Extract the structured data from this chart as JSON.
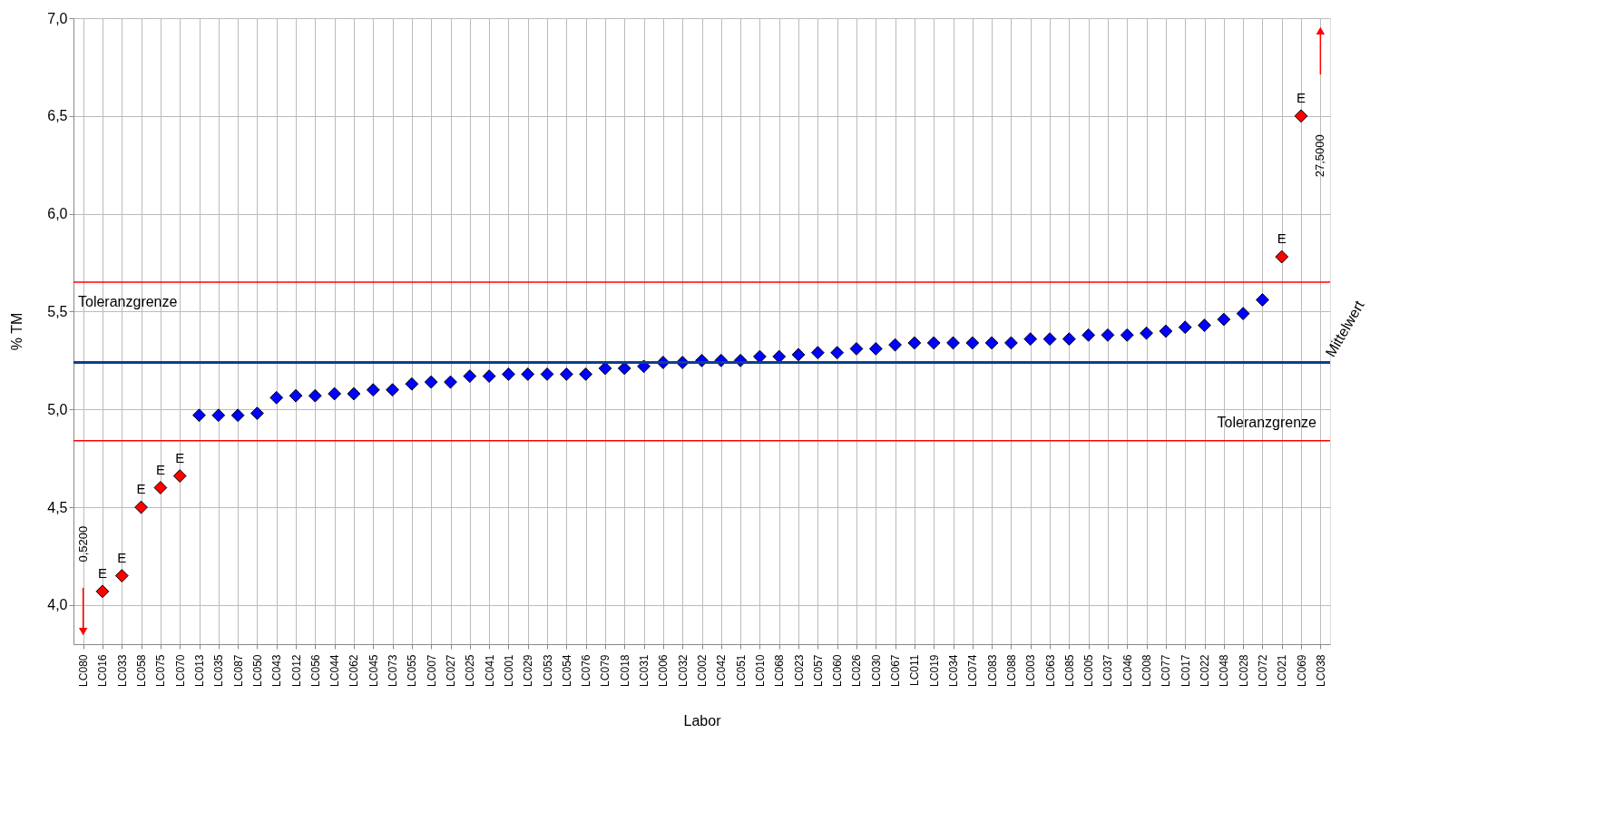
{
  "chart_data": {
    "type": "scatter",
    "xlabel": "Labor",
    "ylabel": "% TM",
    "categories": [
      "LC080",
      "LC016",
      "LC033",
      "LC058",
      "LC075",
      "LC070",
      "LC013",
      "LC035",
      "LC087",
      "LC050",
      "LC043",
      "LC012",
      "LC056",
      "LC044",
      "LC062",
      "LC045",
      "LC073",
      "LC055",
      "LC007",
      "LC027",
      "LC025",
      "LC041",
      "LC001",
      "LC029",
      "LC053",
      "LC054",
      "LC076",
      "LC079",
      "LC018",
      "LC031",
      "LC006",
      "LC032",
      "LC002",
      "LC042",
      "LC051",
      "LC010",
      "LC068",
      "LC023",
      "LC057",
      "LC060",
      "LC026",
      "LC030",
      "LC067",
      "LC011",
      "LC019",
      "LC034",
      "LC074",
      "LC083",
      "LC088",
      "LC003",
      "LC063",
      "LC085",
      "LC005",
      "LC037",
      "LC046",
      "LC008",
      "LC077",
      "LC017",
      "LC022",
      "LC048",
      "LC028",
      "LC072",
      "LC021",
      "LC069",
      "LC038"
    ],
    "values": [
      null,
      4.07,
      4.15,
      4.5,
      4.6,
      4.66,
      4.97,
      4.97,
      4.97,
      4.98,
      5.06,
      5.07,
      5.07,
      5.08,
      5.08,
      5.1,
      5.1,
      5.13,
      5.14,
      5.14,
      5.17,
      5.17,
      5.18,
      5.18,
      5.18,
      5.18,
      5.18,
      5.21,
      5.21,
      5.22,
      5.24,
      5.24,
      5.25,
      5.25,
      5.25,
      5.27,
      5.27,
      5.28,
      5.29,
      5.29,
      5.31,
      5.31,
      5.33,
      5.34,
      5.34,
      5.34,
      5.34,
      5.34,
      5.34,
      5.36,
      5.36,
      5.36,
      5.38,
      5.38,
      5.38,
      5.39,
      5.4,
      5.42,
      5.43,
      5.46,
      5.49,
      5.56,
      5.78,
      6.5,
      null
    ],
    "colors": [
      "#ff0000",
      "#ff0000",
      "#ff0000",
      "#ff0000",
      "#ff0000",
      "#ff0000",
      "#0000ff",
      "#0000ff",
      "#0000ff",
      "#0000ff",
      "#0000ff",
      "#0000ff",
      "#0000ff",
      "#0000ff",
      "#0000ff",
      "#0000ff",
      "#0000ff",
      "#0000ff",
      "#0000ff",
      "#0000ff",
      "#0000ff",
      "#0000ff",
      "#0000ff",
      "#0000ff",
      "#0000ff",
      "#0000ff",
      "#0000ff",
      "#0000ff",
      "#0000ff",
      "#0000ff",
      "#0000ff",
      "#0000ff",
      "#0000ff",
      "#0000ff",
      "#0000ff",
      "#0000ff",
      "#0000ff",
      "#0000ff",
      "#0000ff",
      "#0000ff",
      "#0000ff",
      "#0000ff",
      "#0000ff",
      "#0000ff",
      "#0000ff",
      "#0000ff",
      "#0000ff",
      "#0000ff",
      "#0000ff",
      "#0000ff",
      "#0000ff",
      "#0000ff",
      "#0000ff",
      "#0000ff",
      "#0000ff",
      "#0000ff",
      "#0000ff",
      "#0000ff",
      "#0000ff",
      "#0000ff",
      "#0000ff",
      "#0000ff",
      "#ff0000",
      "#ff0000",
      "#ff0000"
    ],
    "marker": "diamond",
    "ylim": [
      3.8,
      7.0
    ],
    "yticks": [
      {
        "value": 4.0,
        "label": "4,0"
      },
      {
        "value": 4.5,
        "label": "4,5"
      },
      {
        "value": 5.0,
        "label": "5,0"
      },
      {
        "value": 5.5,
        "label": "5,5"
      },
      {
        "value": 6.0,
        "label": "6,0"
      },
      {
        "value": 6.5,
        "label": "6,5"
      },
      {
        "value": 7.0,
        "label": "7,0"
      }
    ],
    "grid": true,
    "ref_lines": [
      {
        "axis": "y",
        "value": 5.65,
        "label": "Toleranzgrenze",
        "color": "#ff0000"
      },
      {
        "axis": "y",
        "value": 4.84,
        "label": "Toleranzgrenze",
        "color": "#ff0000"
      },
      {
        "axis": "y",
        "value": 5.24,
        "label": "Mittelwert",
        "color": "#0d3f8f"
      }
    ],
    "annotations": [
      {
        "text": "E",
        "x": "LC016",
        "y": 4.07
      },
      {
        "text": "E",
        "x": "LC033",
        "y": 4.15
      },
      {
        "text": "E",
        "x": "LC058",
        "y": 4.5
      },
      {
        "text": "E",
        "x": "LC075",
        "y": 4.6
      },
      {
        "text": "E",
        "x": "LC070",
        "y": 4.66
      },
      {
        "text": "E",
        "x": "LC021",
        "y": 5.78
      },
      {
        "text": "E",
        "x": "LC069",
        "y": 6.5
      },
      "0,5200",
      "27,5000"
    ]
  }
}
